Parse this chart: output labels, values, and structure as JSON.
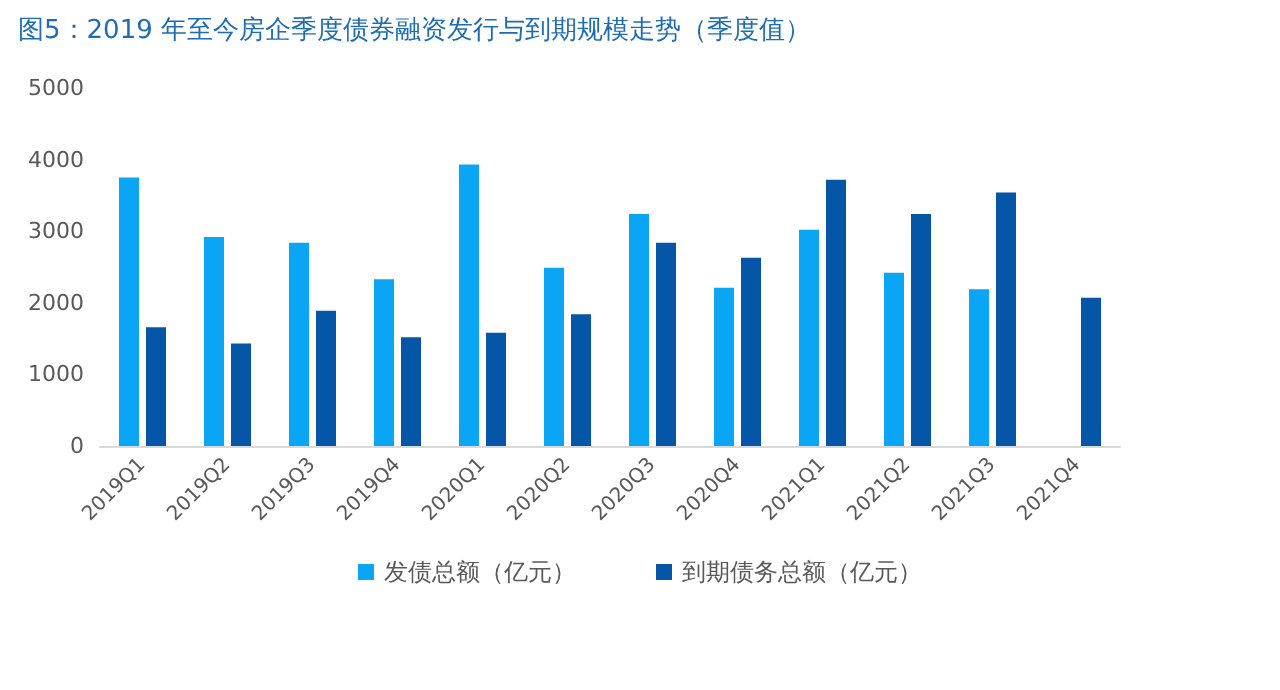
{
  "chart_data": {
    "type": "bar",
    "title": "图5：2019 年至今房企季度债券融资发行与到期规模走势（季度值）",
    "categories": [
      "2019Q1",
      "2019Q2",
      "2019Q3",
      "2019Q4",
      "2020Q1",
      "2020Q2",
      "2020Q3",
      "2020Q4",
      "2021Q1",
      "2021Q2",
      "2021Q3",
      "2021Q4"
    ],
    "series": [
      {
        "name": "发债总额（亿元）",
        "color": "#0aa5f5",
        "values": [
          3750,
          2920,
          2840,
          2330,
          3930,
          2490,
          3240,
          2210,
          3020,
          2420,
          2190,
          null
        ]
      },
      {
        "name": "到期债务总额（亿元）",
        "color": "#0656a8",
        "values": [
          1660,
          1430,
          1890,
          1520,
          1580,
          1840,
          2840,
          2630,
          3720,
          3240,
          3540,
          2070
        ]
      }
    ],
    "ylim": [
      0,
      5000
    ],
    "yticks": [
      0,
      1000,
      2000,
      3000,
      4000,
      5000
    ],
    "grid": false,
    "legend": "bottom"
  }
}
